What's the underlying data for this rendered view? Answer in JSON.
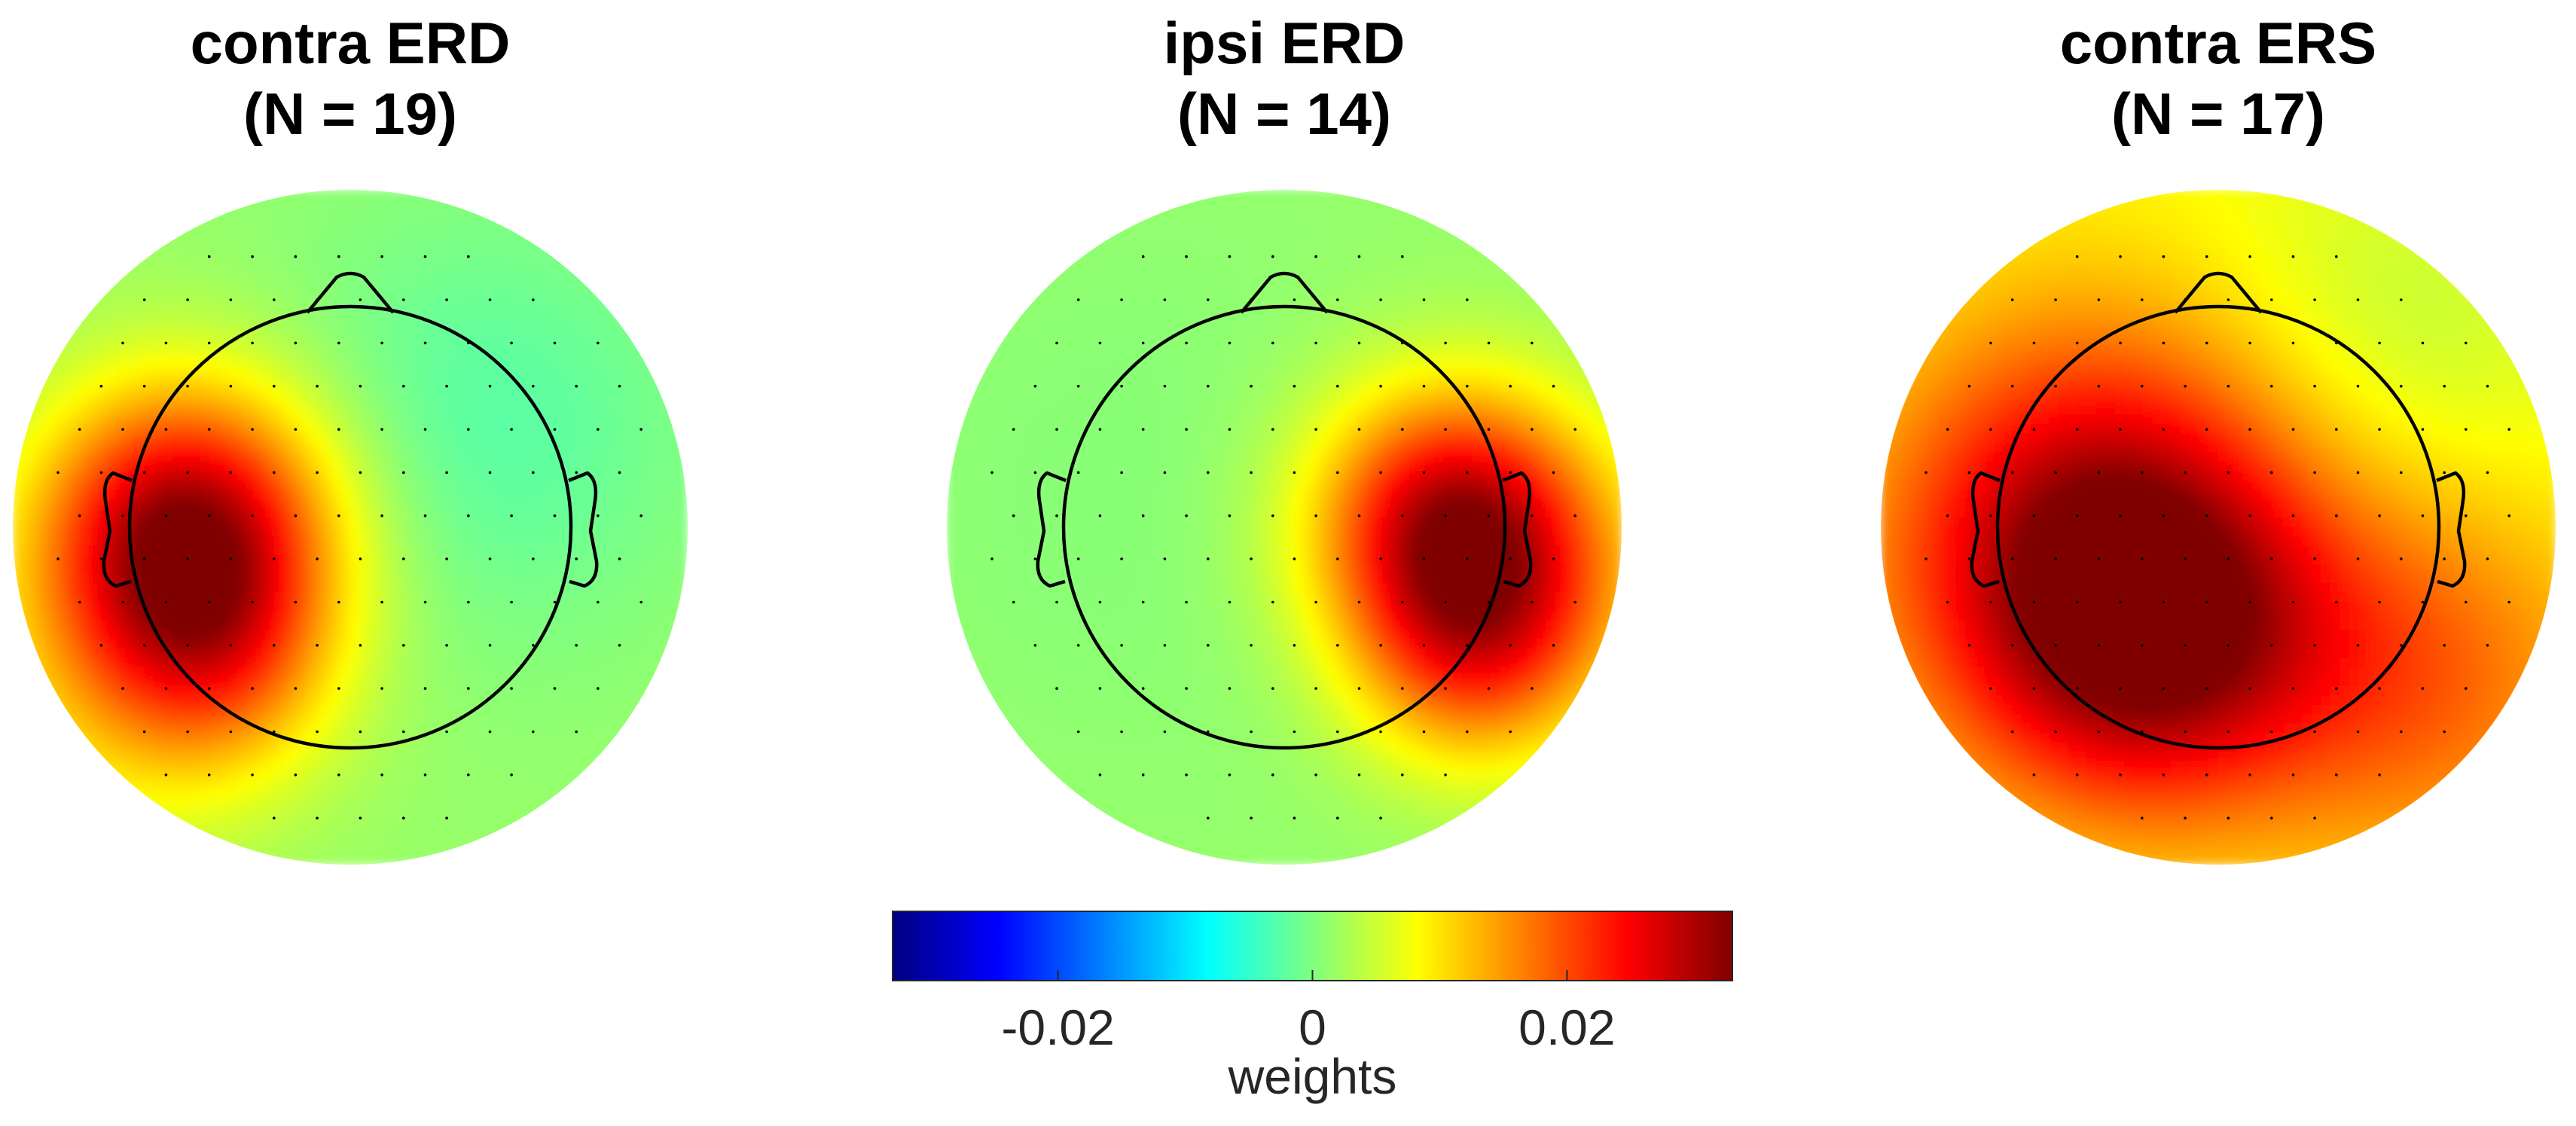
{
  "chart_data": {
    "type": "heatmap",
    "description_kind": "eeg-topographic-maps",
    "colormap": "jet",
    "panels": [
      {
        "title_line1": "contra ERD",
        "title_line2": "(N = 19)",
        "blobs": [
          {
            "nx": -0.48,
            "ny": 0.02,
            "amp": 0.03,
            "sigma": 0.3
          },
          {
            "nx": -0.4,
            "ny": 0.4,
            "amp": 0.01,
            "sigma": 0.25
          },
          {
            "nx": -0.7,
            "ny": 0.5,
            "amp": 0.006,
            "sigma": 0.35
          },
          {
            "nx": 0.4,
            "ny": -0.3,
            "amp": -0.004,
            "sigma": 0.45
          }
        ],
        "base_weight": 0.0015
      },
      {
        "title_line1": "ipsi ERD",
        "title_line2": "(N = 14)",
        "blobs": [
          {
            "nx": 0.5,
            "ny": 0.0,
            "amp": 0.028,
            "sigma": 0.28
          },
          {
            "nx": 0.55,
            "ny": 0.4,
            "amp": 0.012,
            "sigma": 0.24
          },
          {
            "nx": 0.82,
            "ny": 0.2,
            "amp": 0.007,
            "sigma": 0.3
          },
          {
            "nx": -0.4,
            "ny": -0.1,
            "amp": -0.001,
            "sigma": 0.6
          }
        ],
        "base_weight": 0.0015
      },
      {
        "title_line1": "contra ERS",
        "title_line2": "(N = 17)",
        "blobs": [
          {
            "nx": -0.35,
            "ny": 0.05,
            "amp": 0.022,
            "sigma": 0.45
          },
          {
            "nx": -0.2,
            "ny": 0.35,
            "amp": 0.014,
            "sigma": 0.35
          },
          {
            "nx": 0.6,
            "ny": 0.45,
            "amp": 0.01,
            "sigma": 0.4
          },
          {
            "nx": 0.5,
            "ny": -0.55,
            "amp": -0.004,
            "sigma": 0.4
          }
        ],
        "base_weight": 0.008
      }
    ],
    "colorbar": {
      "clim": [
        -0.033,
        0.033
      ],
      "ticks": [
        -0.02,
        0,
        0.02
      ],
      "tick_labels": [
        "-0.02",
        "0",
        "0.02"
      ],
      "label": "weights"
    }
  }
}
